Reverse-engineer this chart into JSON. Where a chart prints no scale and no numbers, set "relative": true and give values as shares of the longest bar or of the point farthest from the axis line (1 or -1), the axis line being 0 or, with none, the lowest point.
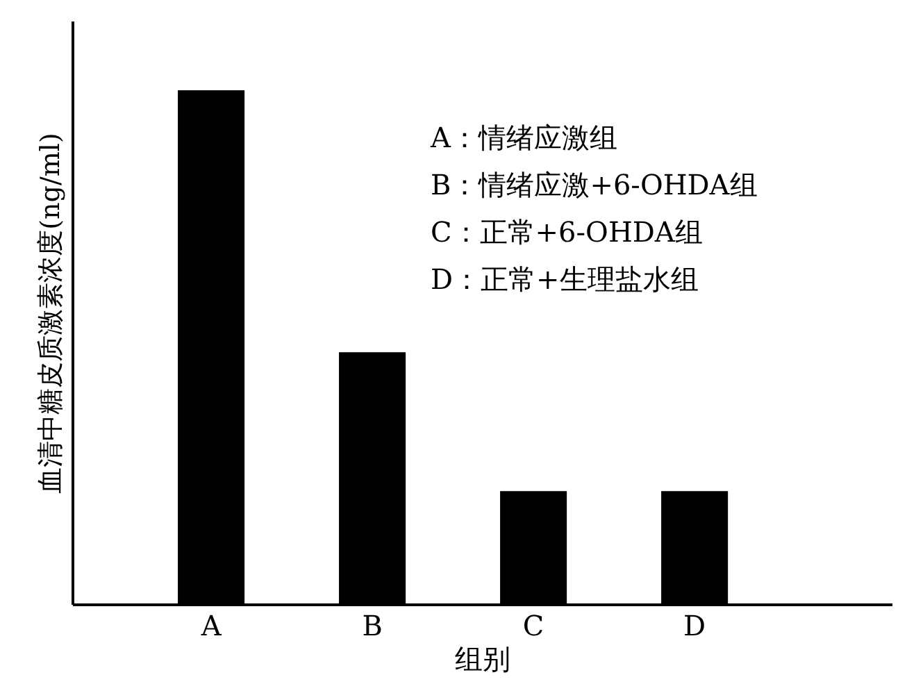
{
  "chart_data": {
    "type": "bar",
    "relative": true,
    "categories": [
      "A",
      "B",
      "C",
      "D"
    ],
    "values": [
      1,
      0.49,
      0.22,
      0.22
    ],
    "color": "#000000",
    "xlabel": "组别",
    "ylabel": "血清中糖皮质激素浓度(ng/ml)",
    "annotations": [
      "A：情绪应激组",
      "B：情绪应激+6-OHDA组",
      "C：正常+6-OHDA组",
      "D：正常+生理盐水组"
    ],
    "grid": false
  }
}
